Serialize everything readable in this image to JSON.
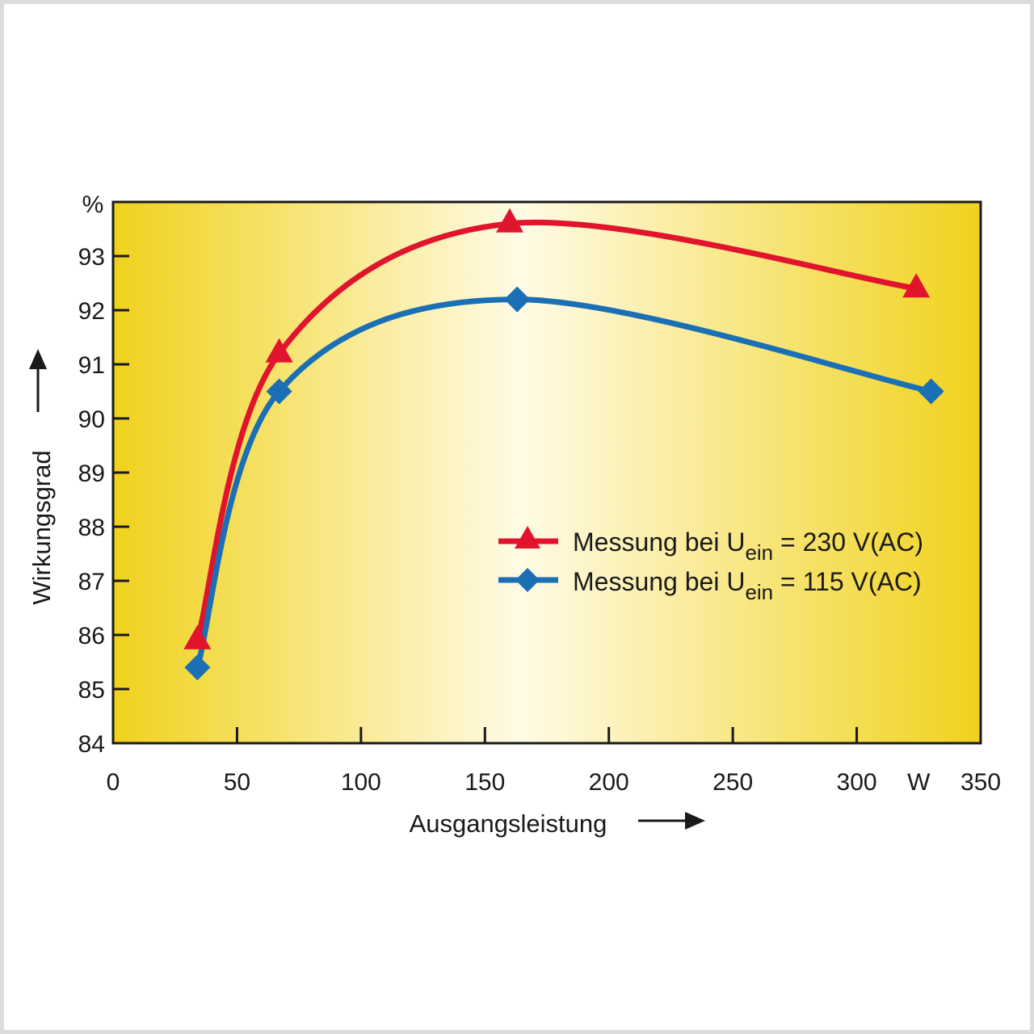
{
  "chart_data": {
    "type": "line",
    "title": "",
    "xlabel": "Ausgangsleistung",
    "ylabel": "Wirkungsgrad",
    "x_unit": "W",
    "y_unit": "%",
    "xlim": [
      0,
      350
    ],
    "ylim": [
      84,
      94
    ],
    "x_ticks": [
      {
        "value": 0,
        "label": "0"
      },
      {
        "value": 50,
        "label": "50"
      },
      {
        "value": 100,
        "label": "100"
      },
      {
        "value": 150,
        "label": "150"
      },
      {
        "value": 200,
        "label": "200"
      },
      {
        "value": 250,
        "label": "250"
      },
      {
        "value": 300,
        "label": "300"
      },
      {
        "value": 350,
        "label": "350"
      }
    ],
    "y_ticks": [
      {
        "value": 84,
        "label": "84"
      },
      {
        "value": 85,
        "label": "85"
      },
      {
        "value": 86,
        "label": "86"
      },
      {
        "value": 87,
        "label": "87"
      },
      {
        "value": 88,
        "label": "88"
      },
      {
        "value": 89,
        "label": "89"
      },
      {
        "value": 90,
        "label": "90"
      },
      {
        "value": 91,
        "label": "91"
      },
      {
        "value": 92,
        "label": "92"
      },
      {
        "value": 93,
        "label": "93"
      }
    ],
    "grid": false,
    "legend_position": "right",
    "background": "yellow-white horizontal gradient",
    "series": [
      {
        "name": "Messung bei Uein = 230 V(AC)",
        "legend_main": "Messung bei U",
        "legend_sub": "ein",
        "legend_tail": " = 230 V(AC)",
        "color": "#e0142c",
        "marker": "triangle",
        "x": [
          34,
          67,
          160,
          324
        ],
        "y": [
          85.9,
          91.2,
          93.6,
          92.4
        ]
      },
      {
        "name": "Messung bei Uein = 115 V(AC)",
        "legend_main": "Messung bei U",
        "legend_sub": "ein",
        "legend_tail": " = 115 V(AC)",
        "color": "#1a6fb5",
        "marker": "diamond",
        "x": [
          34,
          67,
          163,
          330
        ],
        "y": [
          85.4,
          90.5,
          92.2,
          90.5
        ]
      }
    ]
  }
}
